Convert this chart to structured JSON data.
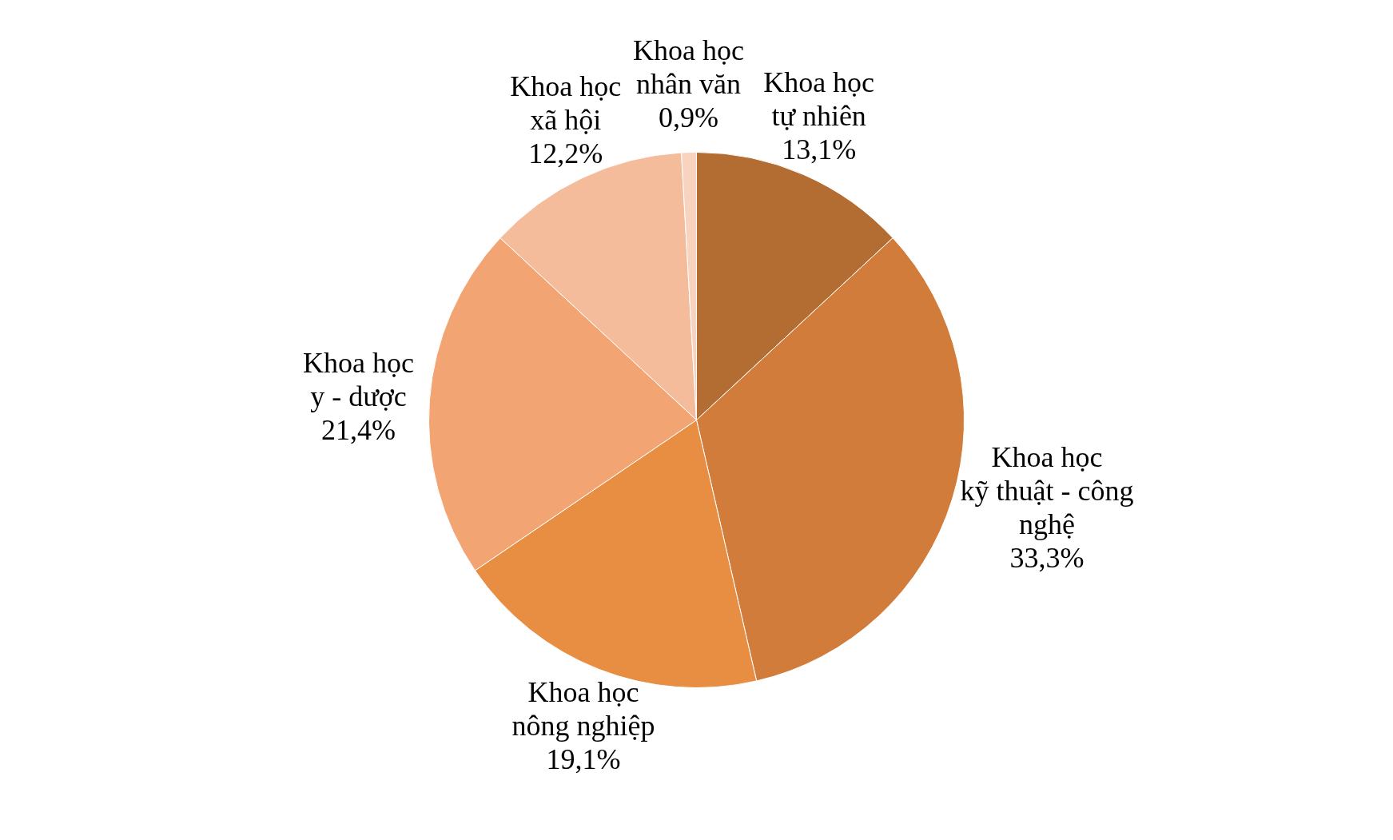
{
  "chart_data": {
    "type": "pie",
    "categories": [
      "Khoa học\ntự nhiên",
      "Khoa học\nkỹ thuật - công\nnghệ",
      "Khoa học\nnông nghiệp",
      "Khoa học\ny - dược",
      "Khoa học\nxã hội",
      "Khoa học\nnhân văn"
    ],
    "values": [
      13.1,
      33.3,
      19.1,
      21.4,
      12.2,
      0.9
    ],
    "value_labels": [
      "13,1%",
      "33,3%",
      "19,1%",
      "21,4%",
      "12,2%",
      "0,9%"
    ],
    "colors": [
      "#b36d32",
      "#d17c3a",
      "#e88e43",
      "#f2a573",
      "#f5bc9b",
      "#f7d3c0"
    ],
    "legend": false
  }
}
